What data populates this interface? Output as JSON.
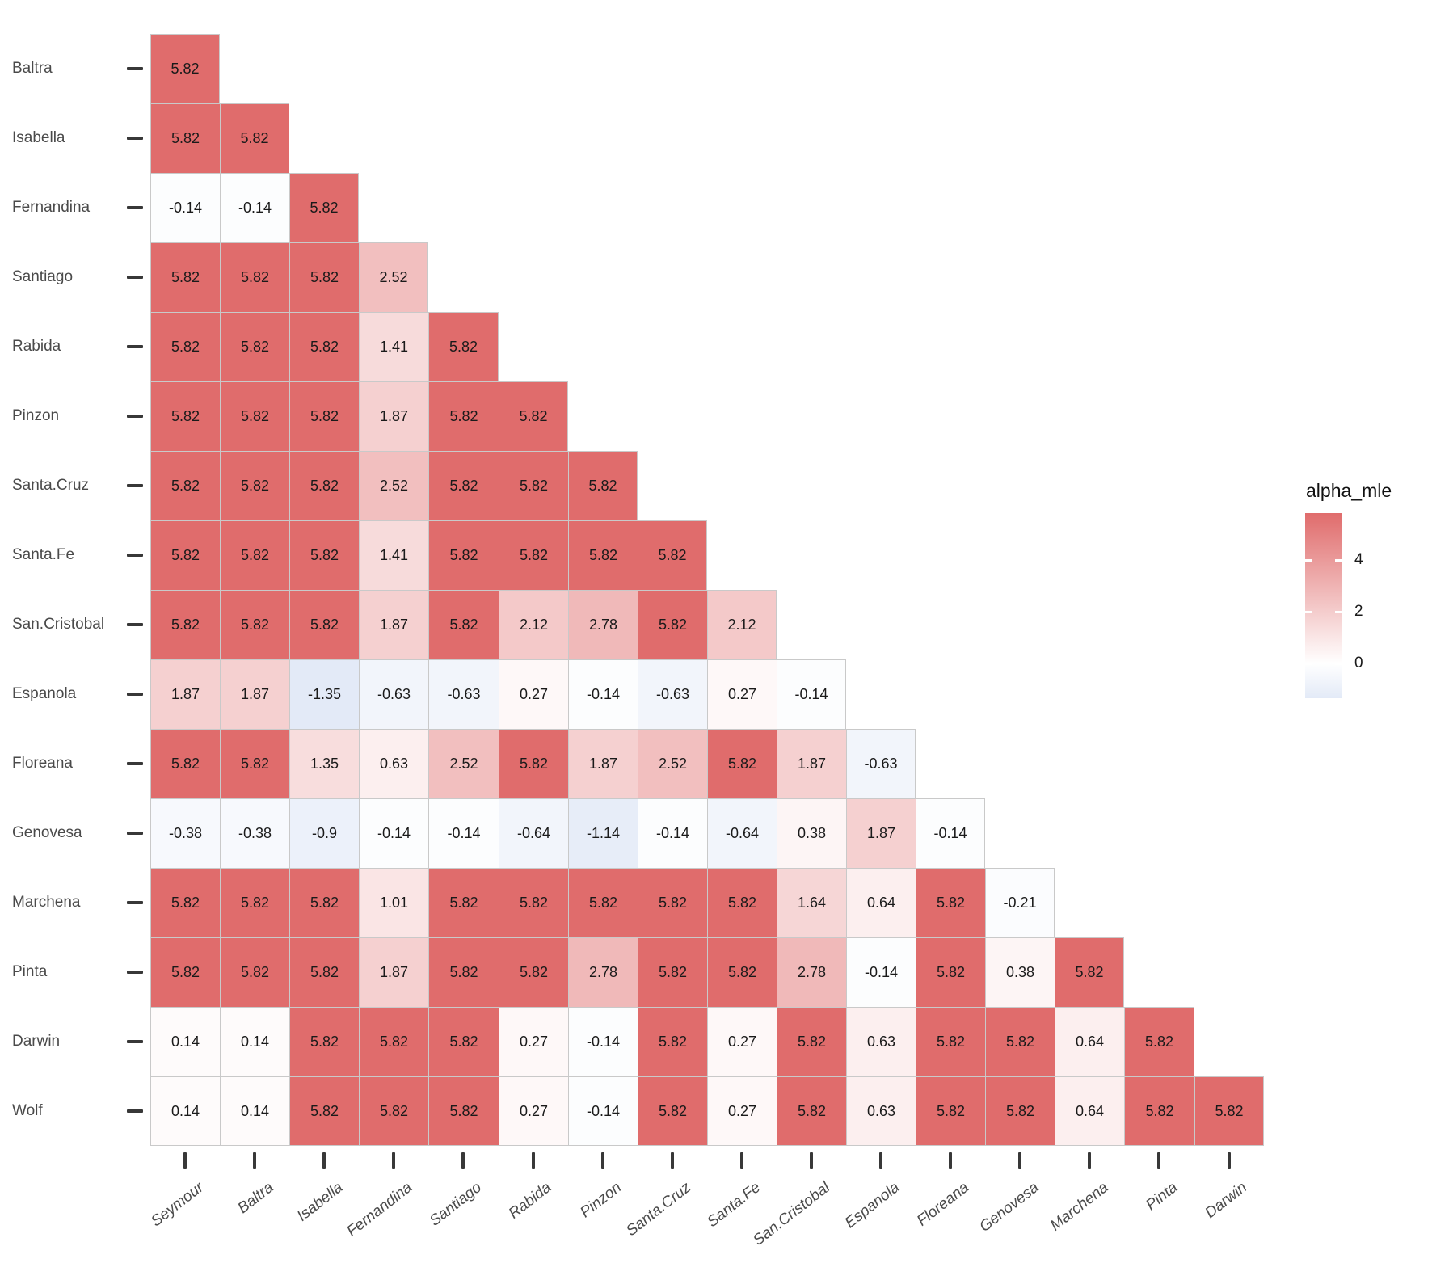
{
  "chart_data": {
    "type": "heatmap",
    "shape": "lower-triangular pairwise matrix",
    "title": "",
    "rows": [
      "Baltra",
      "Isabella",
      "Fernandina",
      "Santiago",
      "Rabida",
      "Pinzon",
      "Santa.Cruz",
      "Santa.Fe",
      "San.Cristobal",
      "Espanola",
      "Floreana",
      "Genovesa",
      "Marchena",
      "Pinta",
      "Darwin",
      "Wolf"
    ],
    "columns": [
      "Seymour",
      "Baltra",
      "Isabella",
      "Fernandina",
      "Santiago",
      "Rabida",
      "Pinzon",
      "Santa.Cruz",
      "Santa.Fe",
      "San.Cristobal",
      "Espanola",
      "Floreana",
      "Genovesa",
      "Marchena",
      "Pinta",
      "Darwin"
    ],
    "values": [
      [
        "5.82"
      ],
      [
        "5.82",
        "5.82"
      ],
      [
        "-0.14",
        "-0.14",
        "5.82"
      ],
      [
        "5.82",
        "5.82",
        "5.82",
        "2.52"
      ],
      [
        "5.82",
        "5.82",
        "5.82",
        "1.41",
        "5.82"
      ],
      [
        "5.82",
        "5.82",
        "5.82",
        "1.87",
        "5.82",
        "5.82"
      ],
      [
        "5.82",
        "5.82",
        "5.82",
        "2.52",
        "5.82",
        "5.82",
        "5.82"
      ],
      [
        "5.82",
        "5.82",
        "5.82",
        "1.41",
        "5.82",
        "5.82",
        "5.82",
        "5.82"
      ],
      [
        "5.82",
        "5.82",
        "5.82",
        "1.87",
        "5.82",
        "2.12",
        "2.78",
        "5.82",
        "2.12"
      ],
      [
        "1.87",
        "1.87",
        "-1.35",
        "-0.63",
        "-0.63",
        "0.27",
        "-0.14",
        "-0.63",
        "0.27",
        "-0.14"
      ],
      [
        "5.82",
        "5.82",
        "1.35",
        "0.63",
        "2.52",
        "5.82",
        "1.87",
        "2.52",
        "5.82",
        "1.87",
        "-0.63"
      ],
      [
        "-0.38",
        "-0.38",
        "-0.9",
        "-0.14",
        "-0.14",
        "-0.64",
        "-1.14",
        "-0.14",
        "-0.64",
        "0.38",
        "1.87",
        "-0.14"
      ],
      [
        "5.82",
        "5.82",
        "5.82",
        "1.01",
        "5.82",
        "5.82",
        "5.82",
        "5.82",
        "5.82",
        "1.64",
        "0.64",
        "5.82",
        "-0.21"
      ],
      [
        "5.82",
        "5.82",
        "5.82",
        "1.87",
        "5.82",
        "5.82",
        "2.78",
        "5.82",
        "5.82",
        "2.78",
        "-0.14",
        "5.82",
        "0.38",
        "5.82"
      ],
      [
        "0.14",
        "0.14",
        "5.82",
        "5.82",
        "5.82",
        "0.27",
        "-0.14",
        "5.82",
        "0.27",
        "5.82",
        "0.63",
        "5.82",
        "5.82",
        "0.64",
        "5.82"
      ],
      [
        "0.14",
        "0.14",
        "5.82",
        "5.82",
        "5.82",
        "0.27",
        "-0.14",
        "5.82",
        "0.27",
        "5.82",
        "0.63",
        "5.82",
        "5.82",
        "0.64",
        "5.82",
        "5.82"
      ]
    ],
    "legend": {
      "title": "alpha_mle",
      "position": "right",
      "ticks": [
        "4",
        "2",
        "0"
      ],
      "tick_values": [
        4,
        2,
        0
      ],
      "domain_max": 5.82,
      "domain_min": -1.35,
      "high_color": "#E06C6C",
      "mid_color": "#FFFFFF",
      "low_color": "#E3EAF7"
    },
    "style": {
      "background": "#FFFFFF",
      "cell_border_color": "#C9C9C9",
      "axis_tick_color": "#383838",
      "axis_label_color": "#4A4A4A",
      "value_text_color": "#1A1A1A",
      "x_labels": "italic, rotated",
      "grid": "cell borders only"
    }
  }
}
